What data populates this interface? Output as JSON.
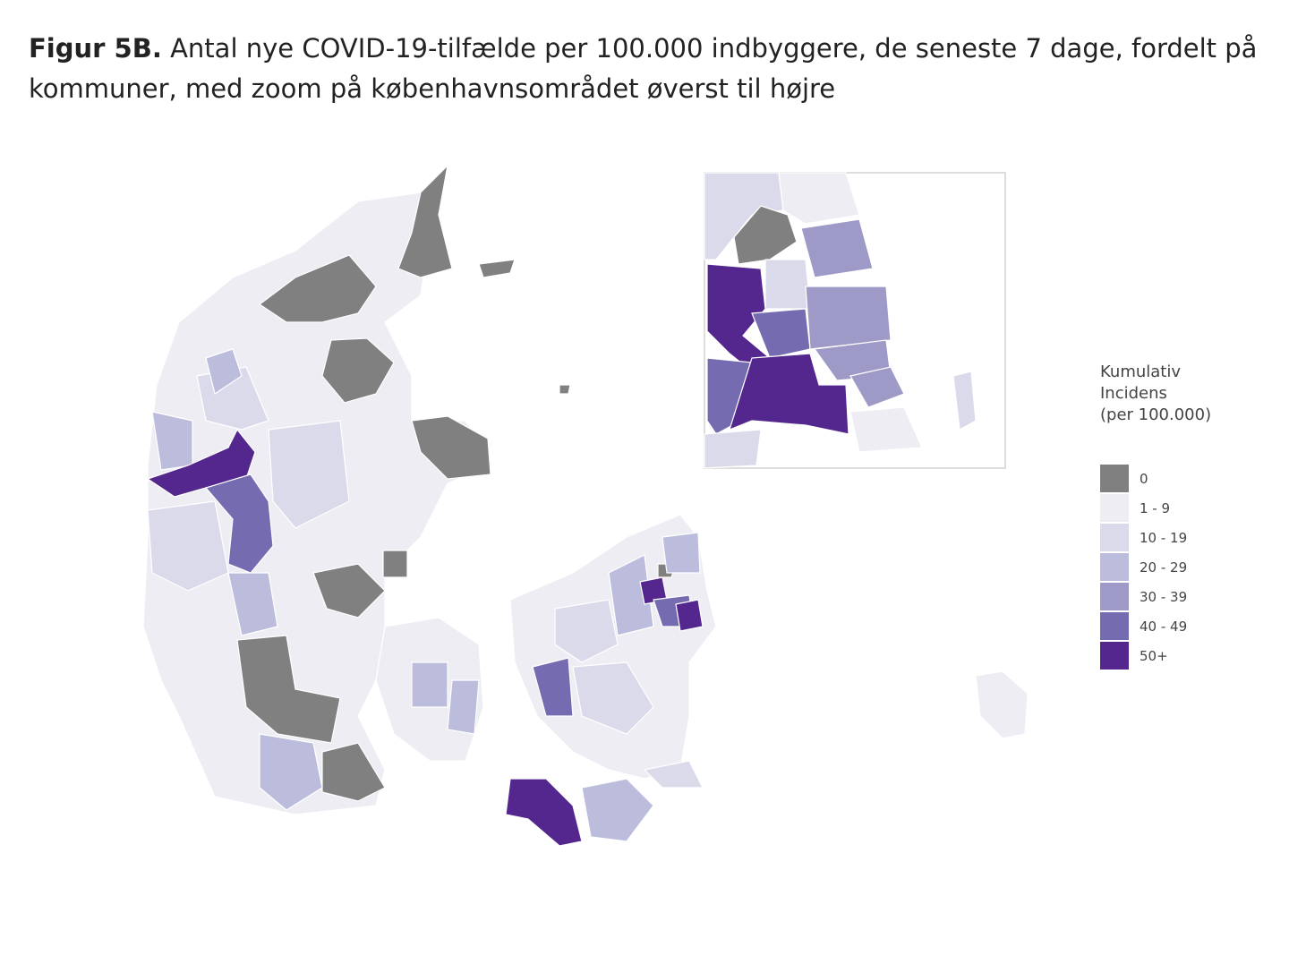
{
  "title": {
    "label": "Figur 5B.",
    "text": " Antal nye COVID-19-tilfælde per 100.000 indbyggere, de seneste 7 dage, fordelt på kommuner, med zoom på københavnsområdet øverst til højre"
  },
  "legend": {
    "title": [
      "Kumulativ",
      "Incidens",
      "(per 100.000)"
    ],
    "items": [
      {
        "label": "0",
        "color": "#808080"
      },
      {
        "label": "1 - 9",
        "color": "#eeedf4"
      },
      {
        "label": "10 - 19",
        "color": "#dadaeb"
      },
      {
        "label": "20 - 29",
        "color": "#bcbddc"
      },
      {
        "label": "30 - 39",
        "color": "#9e9ac8"
      },
      {
        "label": "40 - 49",
        "color": "#756bb1"
      },
      {
        "label": "50+",
        "color": "#54278f"
      }
    ]
  }
}
